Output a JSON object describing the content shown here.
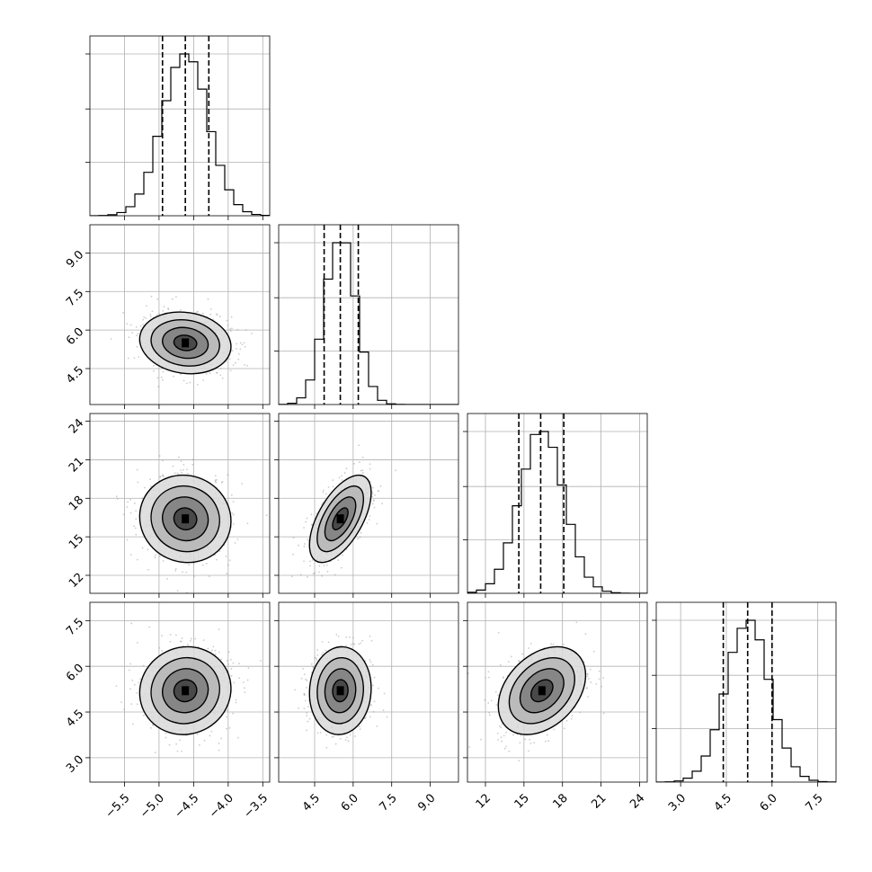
{
  "chart_data": {
    "type": "corner",
    "grid": true,
    "parameters": [
      {
        "range": [
          -6.0,
          -3.4
        ],
        "ticks": [
          -5.5,
          -5.0,
          -4.5,
          -4.0,
          -3.5
        ],
        "tick_labels": [
          "−5.5",
          "−5.0",
          "−4.5",
          "−4.0",
          "−3.5"
        ],
        "mean": -4.62,
        "sd": 0.33,
        "quantiles": [
          -4.95,
          -4.62,
          -4.28
        ]
      },
      {
        "range": [
          3.1,
          10.1
        ],
        "ticks": [
          4.5,
          6.0,
          7.5,
          9.0
        ],
        "tick_labels": [
          "4.5",
          "6.0",
          "7.5",
          "9.0"
        ],
        "mean": 5.5,
        "sd": 0.6,
        "quantiles": [
          4.87,
          5.5,
          6.2
        ]
      },
      {
        "range": [
          10.6,
          24.6
        ],
        "ticks": [
          12,
          15,
          18,
          21,
          24
        ],
        "tick_labels": [
          "12",
          "15",
          "18",
          "21",
          "24"
        ],
        "mean": 16.4,
        "sd": 1.7,
        "quantiles": [
          14.6,
          16.3,
          18.1
        ]
      },
      {
        "range": [
          2.2,
          8.1
        ],
        "ticks": [
          3.0,
          4.5,
          6.0,
          7.5
        ],
        "tick_labels": [
          "3.0",
          "4.5",
          "6.0",
          "7.5"
        ],
        "mean": 5.2,
        "sd": 0.72,
        "quantiles": [
          4.4,
          5.2,
          6.0
        ]
      }
    ],
    "correlations": {
      "1-0": -0.12,
      "2-0": -0.05,
      "2-1": 0.6,
      "3-0": 0.05,
      "3-1": 0.05,
      "3-2": 0.35
    },
    "contour_levels_sigma": [
      0.5,
      1.0,
      1.5,
      2.0
    ],
    "contour_levels_shown": 4
  }
}
